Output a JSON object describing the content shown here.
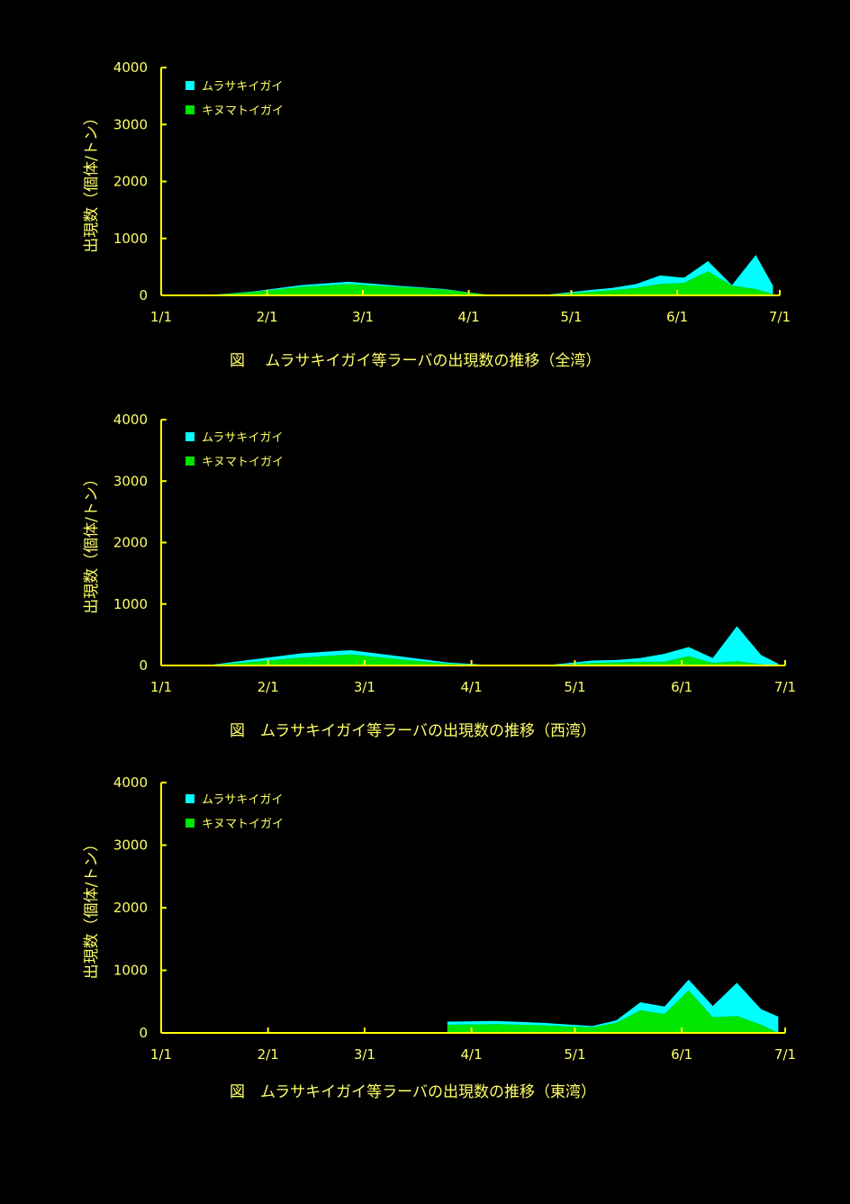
{
  "chart_data": [
    {
      "type": "area",
      "stacked": true,
      "caption": "図　 ムラサキイガイ等ラーバの出現数の推移（全湾）",
      "ylabel": "出現数（個体/トン）",
      "ylim": [
        0,
        4000
      ],
      "yticks": [
        "0",
        "1000",
        "2000",
        "3000",
        "4000"
      ],
      "xticks": [
        "1/1",
        "2/1",
        "3/1",
        "4/1",
        "5/1",
        "6/1",
        "7/1"
      ],
      "x": [
        "1/1",
        "1/14",
        "1/28",
        "2/11",
        "2/25",
        "3/11",
        "3/25",
        "4/8",
        "4/22",
        "5/6",
        "5/13",
        "5/20",
        "5/27",
        "6/3",
        "6/10",
        "6/17",
        "6/24",
        "6/29"
      ],
      "series": [
        {
          "name": "キヌマトイガイ",
          "color": "#00e600",
          "values": [
            0,
            0,
            60,
            150,
            200,
            150,
            100,
            0,
            0,
            60,
            90,
            130,
            200,
            220,
            420,
            170,
            110,
            20
          ]
        },
        {
          "name": "ムラサキイガイ",
          "color": "#00ffff",
          "values": [
            0,
            0,
            10,
            30,
            40,
            20,
            10,
            0,
            0,
            30,
            40,
            70,
            150,
            90,
            180,
            10,
            600,
            150
          ]
        }
      ],
      "legend_position": "top-left"
    },
    {
      "type": "area",
      "stacked": true,
      "caption": "図　ムラサキイガイ等ラーバの出現数の推移（西湾）",
      "ylabel": "出現数（個体/トン）",
      "ylim": [
        0,
        4000
      ],
      "yticks": [
        "0",
        "1000",
        "2000",
        "3000",
        "4000"
      ],
      "xticks": [
        "1/1",
        "2/1",
        "3/1",
        "4/1",
        "5/1",
        "6/1",
        "7/1"
      ],
      "x": [
        "1/1",
        "1/14",
        "1/28",
        "2/11",
        "2/25",
        "3/11",
        "3/25",
        "4/8",
        "4/22",
        "5/6",
        "5/13",
        "5/20",
        "5/27",
        "6/3",
        "6/10",
        "6/17",
        "6/24",
        "6/29"
      ],
      "series": [
        {
          "name": "キヌマトイガイ",
          "color": "#00e600",
          "values": [
            0,
            0,
            60,
            130,
            180,
            100,
            30,
            0,
            0,
            40,
            50,
            60,
            60,
            150,
            40,
            70,
            20,
            0
          ]
        },
        {
          "name": "ムラサキイガイ",
          "color": "#00ffff",
          "values": [
            0,
            0,
            40,
            70,
            70,
            50,
            20,
            0,
            0,
            40,
            40,
            60,
            130,
            150,
            80,
            570,
            150,
            30
          ]
        }
      ],
      "legend_position": "top-left"
    },
    {
      "type": "area",
      "stacked": true,
      "caption": "図　ムラサキイガイ等ラーバの出現数の推移（東湾）",
      "ylabel": "出現数（個体/トン）",
      "ylim": [
        0,
        4000
      ],
      "yticks": [
        "0",
        "1000",
        "2000",
        "3000",
        "4000"
      ],
      "xticks": [
        "1/1",
        "2/1",
        "3/1",
        "4/1",
        "5/1",
        "6/1",
        "7/1"
      ],
      "x": [
        "3/25",
        "4/8",
        "4/22",
        "5/6",
        "5/13",
        "5/20",
        "5/27",
        "6/3",
        "6/10",
        "6/17",
        "6/24",
        "6/29"
      ],
      "series": [
        {
          "name": "キヌマトイガイ",
          "color": "#00e600",
          "values": [
            130,
            140,
            120,
            90,
            160,
            360,
            300,
            680,
            250,
            270,
            130,
            0
          ]
        },
        {
          "name": "ムラサキイガイ",
          "color": "#00ffff",
          "values": [
            50,
            50,
            40,
            20,
            40,
            130,
            120,
            170,
            180,
            530,
            250,
            260
          ]
        }
      ],
      "legend_position": "top-left"
    }
  ]
}
